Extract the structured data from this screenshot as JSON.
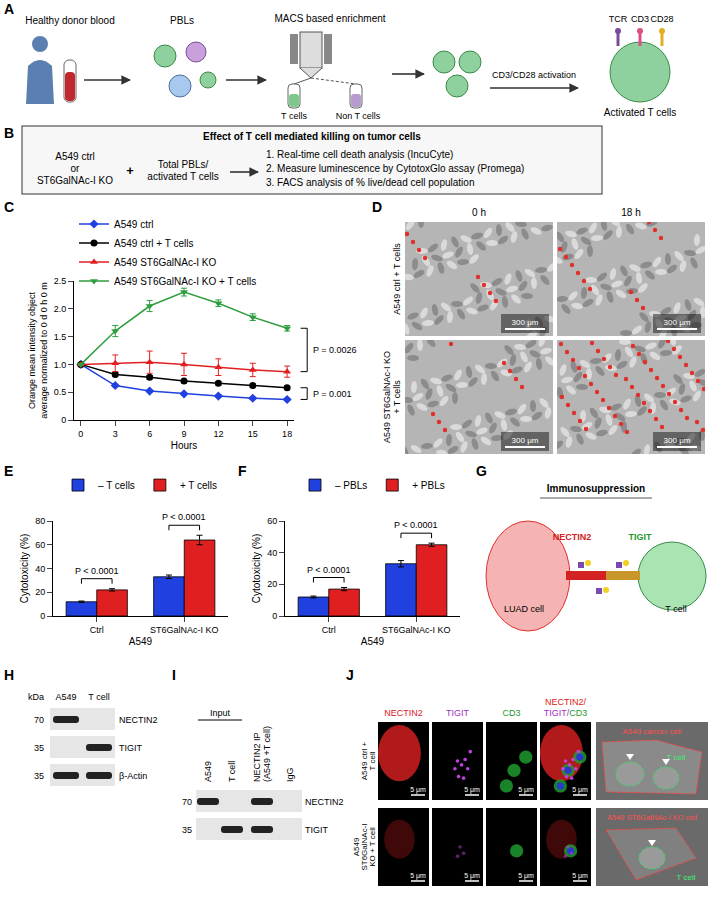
{
  "panel_letters": [
    "A",
    "B",
    "C",
    "D",
    "E",
    "F",
    "G",
    "H",
    "I",
    "J"
  ],
  "A": {
    "source": "Healthy donor blood",
    "pbls": "PBLs",
    "enrichment": "MACS based enrichment",
    "tube_labels": [
      "T cells",
      "Non T cells"
    ],
    "activation": "CD3/CD28 activation",
    "receptors": [
      "TCR",
      "CD3",
      "CD28"
    ],
    "result": "Activated T cells"
  },
  "B": {
    "title": "Effect of T cell mediated killing on tumor cells",
    "left": [
      "A549 ctrl",
      "or",
      "ST6GalNAc-I KO"
    ],
    "plus": "+",
    "middle": [
      "Total PBLs/",
      "activated T cells"
    ],
    "steps": [
      "1. Real-time cell death analysis (IncuCyte)",
      "2. Measure luminescence by CytotoxGlo assay (Promega)",
      "3. FACS analysis of % live/dead cell population"
    ]
  },
  "chart_data": [
    {
      "type": "line",
      "x": [
        0,
        3,
        6,
        9,
        12,
        15,
        18
      ],
      "series": [
        {
          "name": "A549 ctrl",
          "color": "#2040e0",
          "marker": "diamond",
          "values": [
            1,
            0.62,
            0.52,
            0.47,
            0.43,
            0.39,
            0.37
          ],
          "errors": [
            0,
            0.02,
            0.02,
            0.02,
            0.02,
            0.02,
            0.02
          ]
        },
        {
          "name": "A549 ctrl + T cells",
          "color": "#000000",
          "marker": "circle",
          "values": [
            1,
            0.82,
            0.77,
            0.7,
            0.66,
            0.62,
            0.58
          ],
          "errors": [
            0,
            0.03,
            0.03,
            0.03,
            0.03,
            0.03,
            0.03
          ]
        },
        {
          "name": "A549 ST6GalNAc-I KO",
          "color": "#e02020",
          "marker": "triangle-up",
          "values": [
            1,
            1.02,
            1.04,
            1.0,
            0.95,
            0.9,
            0.87
          ],
          "errors": [
            0,
            0.15,
            0.2,
            0.2,
            0.15,
            0.12,
            0.1
          ]
        },
        {
          "name": "A549 ST6GalNAc-I KO + T cells",
          "color": "#2e9e3e",
          "marker": "triangle-down",
          "values": [
            1,
            1.6,
            2.05,
            2.3,
            2.1,
            1.85,
            1.65
          ],
          "errors": [
            0,
            0.1,
            0.1,
            0.07,
            0.06,
            0.06,
            0.05
          ]
        }
      ],
      "x_label": "Hours",
      "y_label": "Orange mean intensity object average normalized to 0 d 0 h 0 m",
      "xlim": [
        -0.6,
        18.6
      ],
      "xticks": [
        0,
        3,
        6,
        9,
        12,
        15,
        18
      ],
      "ylim": [
        0,
        2.5
      ],
      "yticks": [
        0,
        0.5,
        {
          "value": 1,
          "label": "1.0"
        },
        1.5,
        {
          "value": 2,
          "label": "2.0"
        },
        2.5
      ],
      "grid": false,
      "legend": "top",
      "annotations": [
        {
          "text": "P = 0.0026",
          "between": [
            "A549 ST6GalNAc-I KO + T cells",
            "A549 ST6GalNAc-I KO"
          ]
        },
        {
          "text": "P = 0.001",
          "between": [
            "A549 ctrl + T cells",
            "A549 ctrl"
          ]
        }
      ]
    },
    {
      "type": "bar",
      "categories": [
        "Ctrl",
        "ST6GalNAc-I KO"
      ],
      "series": [
        {
          "name": "– T cells",
          "color": "#2040e0",
          "values": [
            12,
            33
          ],
          "errors": [
            0.6,
            1.5
          ]
        },
        {
          "name": "+ T cells",
          "color": "#e02020",
          "values": [
            22,
            64
          ],
          "errors": [
            1,
            4
          ]
        }
      ],
      "x_label": "A549",
      "y_label": "Cytotoxicity (%)",
      "ylim": [
        0,
        80
      ],
      "yticks": [
        0,
        20,
        40,
        60,
        80
      ],
      "grid": false,
      "legend": "top",
      "annotations": [
        {
          "text": "P < 0.0001",
          "category": "Ctrl"
        },
        {
          "text": "P < 0.0001",
          "category": "ST6GalNAc-I KO"
        }
      ]
    },
    {
      "type": "bar",
      "categories": [
        "Ctrl",
        "ST6GalNAc-I KO"
      ],
      "series": [
        {
          "name": "– PBLs",
          "color": "#2040e0",
          "values": [
            12,
            33
          ],
          "errors": [
            0.6,
            2
          ]
        },
        {
          "name": "+ PBLs",
          "color": "#e02020",
          "values": [
            17,
            45
          ],
          "errors": [
            1,
            1
          ]
        }
      ],
      "x_label": "A549",
      "y_label": "Cytotoxicity (%)",
      "ylim": [
        0,
        60
      ],
      "yticks": [
        0,
        20,
        40,
        60
      ],
      "grid": false,
      "legend": "top",
      "annotations": [
        {
          "text": "P < 0.0001",
          "category": "Ctrl"
        },
        {
          "text": "P < 0.0001",
          "category": "ST6GalNAc-I KO"
        }
      ]
    }
  ],
  "D": {
    "columns": [
      "0 h",
      "18 h"
    ],
    "rows": [
      "A549 ctrl + T cells",
      "A549 ST6GalNAc-I KO + T cells"
    ],
    "scale_bar": "300 μm"
  },
  "G": {
    "title": "Immunosuppression",
    "ligand": "NECTIN2",
    "receptor": "TIGIT",
    "tumor_cell": "LUAD cell",
    "t_cell": "T cell"
  },
  "H": {
    "unit": "kDa",
    "lanes": [
      "A549",
      "T cell"
    ],
    "rows": [
      {
        "label": "NECTIN2",
        "marker": 70,
        "bands": [
          true,
          false
        ]
      },
      {
        "label": "TIGIT",
        "marker": 35,
        "bands": [
          false,
          true
        ]
      },
      {
        "label": "β-Actin",
        "marker": 35,
        "bands": [
          true,
          true
        ]
      }
    ]
  },
  "I": {
    "group": "Input",
    "lanes": [
      "A549",
      "T cell",
      "NECTIN2 IP (A549 +T cell)",
      "IgG"
    ],
    "rows": [
      {
        "label": "NECTIN2",
        "marker": 70,
        "bands": [
          true,
          false,
          true,
          false
        ]
      },
      {
        "label": "TIGIT",
        "marker": 35,
        "bands": [
          false,
          true,
          true,
          false
        ]
      }
    ]
  },
  "J": {
    "columns": [
      {
        "text": "NECTIN2",
        "color": "#e02020"
      },
      {
        "text": "TIGIT",
        "color": "#a030c0"
      },
      {
        "text": "CD3",
        "color": "#1f9a2f"
      }
    ],
    "merge": [
      {
        "text": "NECTIN2/",
        "color": "#e02020"
      },
      {
        "text": "TIGIT/",
        "color": "#a030c0"
      },
      {
        "text": "CD3",
        "color": "#1f9a2f"
      }
    ],
    "rows": [
      "A549 ctrl + T cell",
      "A549 ST6GalNAc-I KO + T cell"
    ],
    "scale_bar": "5 μm",
    "overlay": [
      {
        "cell": "A549 cancer cell",
        "t_cell": "T cell"
      },
      {
        "cell": "A549 ST6GalNAc-I KO cell",
        "t_cell": "T cell"
      }
    ]
  }
}
